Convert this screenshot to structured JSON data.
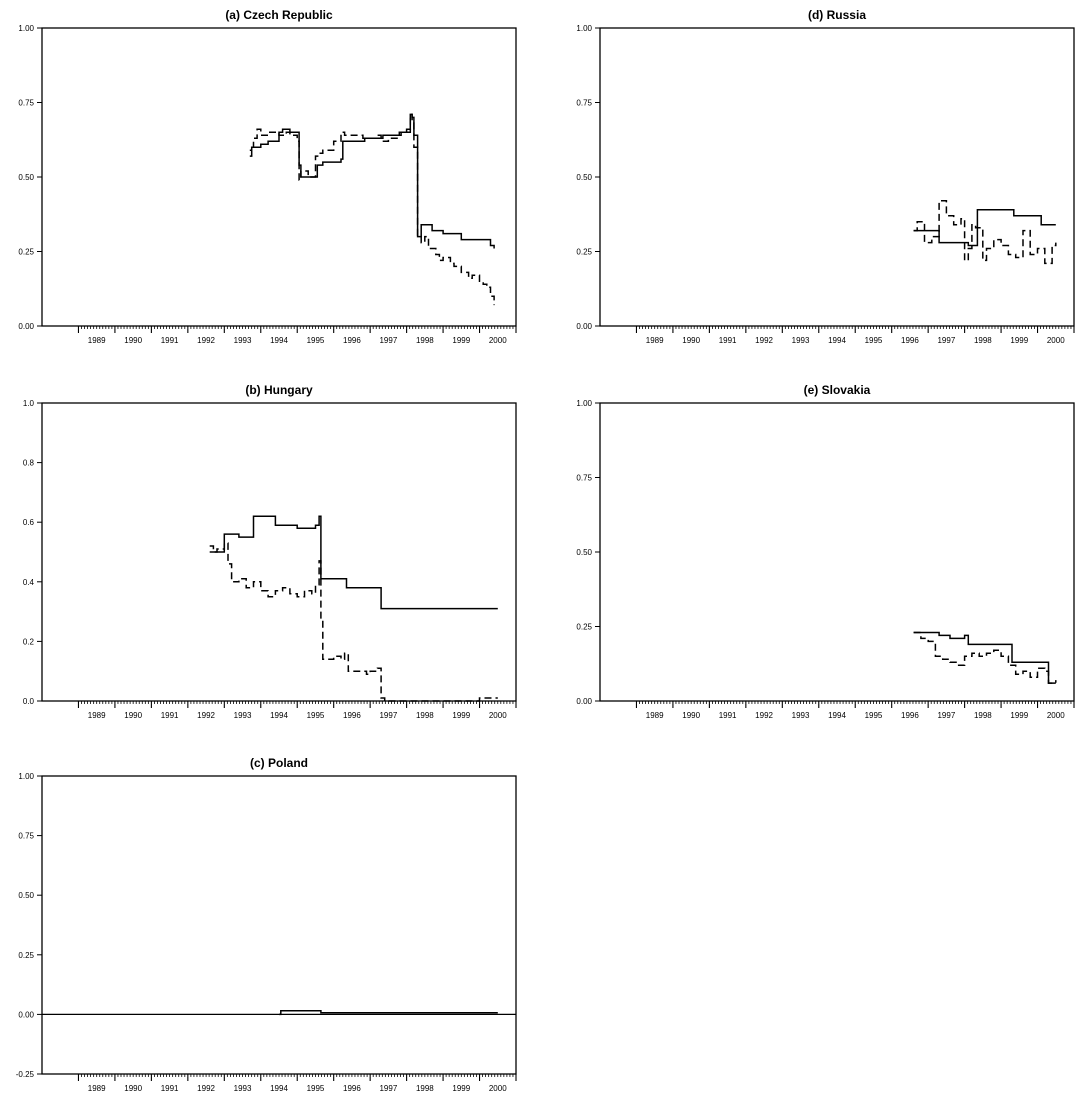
{
  "chart_data": [
    {
      "id": "czech",
      "type": "line",
      "title": "(a) Czech Republic",
      "xlabel": "",
      "ylabel": "",
      "xlim": [
        1988,
        2001
      ],
      "ylim": [
        0,
        1
      ],
      "ytick_labels": [
        "0.00",
        "0.25",
        "0.50",
        "0.75",
        "1.00"
      ],
      "ytick_values": [
        0,
        0.25,
        0.5,
        0.75,
        1.0
      ],
      "xtick_labels": [
        "1989",
        "1990",
        "1991",
        "1992",
        "1993",
        "1994",
        "1995",
        "1996",
        "1997",
        "1998",
        "1999",
        "2000"
      ],
      "grid": false,
      "series": [
        {
          "style": "solid",
          "color": "#000000",
          "x": [
            1993.7,
            1993.75,
            1993.8,
            1994.0,
            1994.2,
            1994.4,
            1994.5,
            1994.6,
            1994.8,
            1995.0,
            1995.05,
            1995.1,
            1995.5,
            1995.55,
            1995.7,
            1996.2,
            1996.25,
            1996.8,
            1996.85,
            1997.3,
            1997.35,
            1997.8,
            1997.85,
            1998.0,
            1998.1,
            1998.15,
            1998.2,
            1998.3,
            1998.4,
            1998.5,
            1998.7,
            1999.0,
            1999.4,
            1999.5,
            2000.1,
            2000.2,
            2000.3,
            2000.4
          ],
          "y": [
            0.59,
            0.6,
            0.6,
            0.61,
            0.62,
            0.62,
            0.65,
            0.66,
            0.65,
            0.65,
            0.54,
            0.5,
            0.5,
            0.54,
            0.55,
            0.56,
            0.62,
            0.62,
            0.63,
            0.63,
            0.64,
            0.64,
            0.65,
            0.65,
            0.71,
            0.7,
            0.64,
            0.3,
            0.34,
            0.34,
            0.32,
            0.31,
            0.31,
            0.29,
            0.29,
            0.29,
            0.27,
            0.26
          ]
        },
        {
          "style": "dashed",
          "color": "#000000",
          "x": [
            1993.7,
            1993.75,
            1993.8,
            1993.9,
            1994.0,
            1994.2,
            1994.4,
            1994.5,
            1994.7,
            1994.8,
            1995.0,
            1995.05,
            1995.1,
            1995.3,
            1995.5,
            1995.6,
            1995.7,
            1996.0,
            1996.2,
            1996.3,
            1996.6,
            1996.8,
            1997.0,
            1997.2,
            1997.3,
            1997.5,
            1997.8,
            1998.0,
            1998.1,
            1998.15,
            1998.2,
            1998.3,
            1998.4,
            1998.5,
            1998.6,
            1998.8,
            1998.9,
            1999.0,
            1999.2,
            1999.3,
            1999.5,
            1999.7,
            1999.8,
            2000.0,
            2000.1,
            2000.2,
            2000.3,
            2000.4
          ],
          "y": [
            0.57,
            0.6,
            0.63,
            0.66,
            0.64,
            0.65,
            0.65,
            0.64,
            0.65,
            0.64,
            0.62,
            0.49,
            0.52,
            0.5,
            0.57,
            0.58,
            0.59,
            0.62,
            0.65,
            0.64,
            0.64,
            0.63,
            0.63,
            0.64,
            0.62,
            0.63,
            0.65,
            0.66,
            0.71,
            0.69,
            0.6,
            0.3,
            0.28,
            0.3,
            0.26,
            0.24,
            0.22,
            0.23,
            0.21,
            0.2,
            0.18,
            0.16,
            0.17,
            0.15,
            0.14,
            0.13,
            0.1,
            0.07
          ]
        }
      ]
    },
    {
      "id": "hungary",
      "type": "line",
      "title": "(b) Hungary",
      "xlabel": "",
      "ylabel": "",
      "xlim": [
        1988,
        2001
      ],
      "ylim": [
        0,
        1
      ],
      "ytick_labels": [
        "0.0",
        "0.2",
        "0.4",
        "0.6",
        "0.8",
        "1.0"
      ],
      "ytick_values": [
        0,
        0.2,
        0.4,
        0.6,
        0.8,
        1.0
      ],
      "xtick_labels": [
        "1989",
        "1990",
        "1991",
        "1992",
        "1993",
        "1994",
        "1995",
        "1996",
        "1997",
        "1998",
        "1999",
        "2000"
      ],
      "grid": false,
      "series": [
        {
          "style": "solid",
          "color": "#000000",
          "x": [
            1992.6,
            1992.7,
            1992.9,
            1993.0,
            1993.3,
            1993.4,
            1993.7,
            1993.8,
            1994.3,
            1994.4,
            1994.8,
            1995.0,
            1995.5,
            1995.6,
            1995.65,
            1996.3,
            1996.35,
            1997.2,
            1997.3,
            2000.5
          ],
          "y": [
            0.5,
            0.5,
            0.5,
            0.56,
            0.56,
            0.55,
            0.55,
            0.62,
            0.62,
            0.59,
            0.59,
            0.58,
            0.59,
            0.62,
            0.41,
            0.41,
            0.38,
            0.38,
            0.31,
            0.31
          ]
        },
        {
          "style": "dashed",
          "color": "#000000",
          "x": [
            1992.6,
            1992.7,
            1992.8,
            1993.0,
            1993.1,
            1993.2,
            1993.4,
            1993.6,
            1993.8,
            1994.0,
            1994.2,
            1994.4,
            1994.6,
            1994.8,
            1995.0,
            1995.2,
            1995.4,
            1995.5,
            1995.6,
            1995.65,
            1995.7,
            1996.0,
            1996.2,
            1996.3,
            1996.4,
            1996.6,
            1996.9,
            1997.0,
            1997.2,
            1997.3,
            1997.4,
            1998.0,
            1999.0,
            2000.0,
            2000.5
          ],
          "y": [
            0.52,
            0.5,
            0.51,
            0.53,
            0.46,
            0.4,
            0.41,
            0.38,
            0.4,
            0.37,
            0.35,
            0.37,
            0.38,
            0.36,
            0.35,
            0.37,
            0.36,
            0.39,
            0.47,
            0.27,
            0.14,
            0.15,
            0.14,
            0.16,
            0.1,
            0.1,
            0.09,
            0.1,
            0.11,
            0.01,
            0.0,
            0.0,
            0.0,
            0.01,
            0.01
          ]
        }
      ]
    },
    {
      "id": "poland",
      "type": "line",
      "title": "(c) Poland",
      "xlabel": "",
      "ylabel": "",
      "xlim": [
        1988,
        2001
      ],
      "ylim": [
        -0.25,
        1
      ],
      "ytick_labels": [
        "-0.25",
        "0.00",
        "0.25",
        "0.50",
        "0.75",
        "1.00"
      ],
      "ytick_values": [
        -0.25,
        0,
        0.25,
        0.5,
        0.75,
        1.0
      ],
      "xtick_labels": [
        "1989",
        "1990",
        "1991",
        "1992",
        "1993",
        "1994",
        "1995",
        "1996",
        "1997",
        "1998",
        "1999",
        "2000"
      ],
      "grid": false,
      "zero_line": true,
      "series": [
        {
          "style": "solid",
          "color": "#000000",
          "x": [
            1994.5,
            1994.55,
            1995.6,
            1995.65,
            2000.5
          ],
          "y": [
            0.0,
            0.015,
            0.015,
            0.007,
            0.007
          ]
        }
      ]
    },
    {
      "id": "russia",
      "type": "line",
      "title": "(d) Russia",
      "xlabel": "",
      "ylabel": "",
      "xlim": [
        1988,
        2001
      ],
      "ylim": [
        0,
        1
      ],
      "ytick_labels": [
        "0.00",
        "0.25",
        "0.50",
        "0.75",
        "1.00"
      ],
      "ytick_values": [
        0,
        0.25,
        0.5,
        0.75,
        1.0
      ],
      "xtick_labels": [
        "1989",
        "1990",
        "1991",
        "1992",
        "1993",
        "1994",
        "1995",
        "1996",
        "1997",
        "1998",
        "1999",
        "2000"
      ],
      "grid": false,
      "series": [
        {
          "style": "solid",
          "color": "#000000",
          "x": [
            1996.6,
            1997.2,
            1997.3,
            1998.0,
            1998.1,
            1998.3,
            1998.35,
            1999.3,
            1999.35,
            2000.0,
            2000.1,
            2000.5
          ],
          "y": [
            0.32,
            0.32,
            0.28,
            0.28,
            0.27,
            0.27,
            0.39,
            0.39,
            0.37,
            0.37,
            0.34,
            0.34
          ]
        },
        {
          "style": "dashed",
          "color": "#000000",
          "x": [
            1996.6,
            1996.7,
            1996.9,
            1997.1,
            1997.3,
            1997.5,
            1997.7,
            1997.9,
            1998.0,
            1998.1,
            1998.2,
            1998.3,
            1998.5,
            1998.6,
            1998.8,
            1999.0,
            1999.2,
            1999.4,
            1999.6,
            1999.8,
            2000.0,
            2000.2,
            2000.4,
            2000.5
          ],
          "y": [
            0.32,
            0.35,
            0.28,
            0.3,
            0.42,
            0.37,
            0.34,
            0.36,
            0.22,
            0.26,
            0.34,
            0.33,
            0.22,
            0.26,
            0.29,
            0.27,
            0.24,
            0.23,
            0.32,
            0.24,
            0.26,
            0.21,
            0.27,
            0.28
          ]
        }
      ]
    },
    {
      "id": "slovakia",
      "type": "line",
      "title": "(e) Slovakia",
      "xlabel": "",
      "ylabel": "",
      "xlim": [
        1988,
        2001
      ],
      "ylim": [
        0,
        1
      ],
      "ytick_labels": [
        "0.00",
        "0.25",
        "0.50",
        "0.75",
        "1.00"
      ],
      "ytick_values": [
        0,
        0.25,
        0.5,
        0.75,
        1.0
      ],
      "xtick_labels": [
        "1989",
        "1990",
        "1991",
        "1992",
        "1993",
        "1994",
        "1995",
        "1996",
        "1997",
        "1998",
        "1999",
        "2000"
      ],
      "grid": false,
      "series": [
        {
          "style": "solid",
          "color": "#000000",
          "x": [
            1996.6,
            1996.8,
            1997.2,
            1997.3,
            1997.6,
            1997.9,
            1998.0,
            1998.1,
            1999.2,
            1999.3,
            2000.2,
            2000.3,
            2000.5
          ],
          "y": [
            0.23,
            0.23,
            0.23,
            0.22,
            0.21,
            0.21,
            0.22,
            0.19,
            0.19,
            0.13,
            0.13,
            0.06,
            0.06
          ]
        },
        {
          "style": "dashed",
          "color": "#000000",
          "x": [
            1996.6,
            1996.8,
            1997.0,
            1997.2,
            1997.4,
            1997.6,
            1997.8,
            1998.0,
            1998.2,
            1998.4,
            1998.6,
            1998.8,
            1999.0,
            1999.2,
            1999.4,
            1999.6,
            1999.8,
            2000.0,
            2000.2,
            2000.3,
            2000.5
          ],
          "y": [
            0.23,
            0.21,
            0.2,
            0.15,
            0.14,
            0.13,
            0.12,
            0.15,
            0.16,
            0.15,
            0.16,
            0.17,
            0.15,
            0.12,
            0.09,
            0.1,
            0.08,
            0.11,
            0.1,
            0.06,
            0.07
          ]
        }
      ]
    }
  ]
}
